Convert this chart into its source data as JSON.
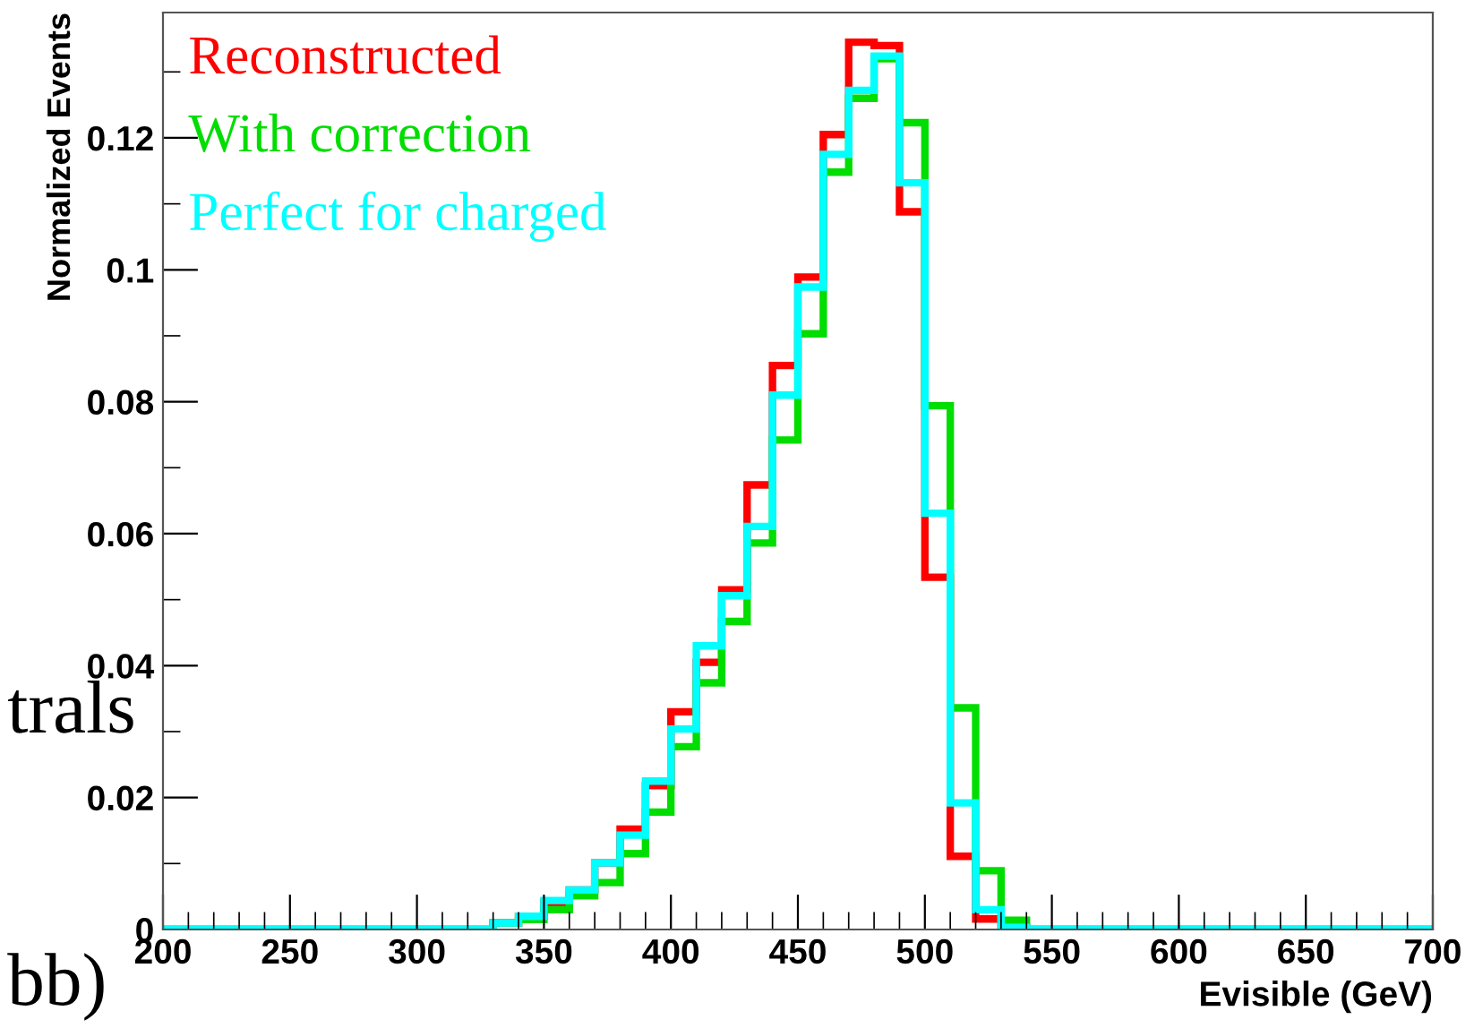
{
  "chart_data": {
    "type": "histogram",
    "xlabel": "Evisible (GeV)",
    "ylabel": "Normalized Events",
    "bins": [
      200,
      210,
      220,
      230,
      240,
      250,
      260,
      270,
      280,
      290,
      300,
      310,
      320,
      330,
      340,
      350,
      360,
      370,
      380,
      390,
      400,
      410,
      420,
      430,
      440,
      450,
      460,
      470,
      480,
      490,
      500,
      510,
      520,
      530,
      540,
      550,
      560,
      570,
      580,
      590,
      600,
      610,
      620,
      630,
      640,
      650,
      660,
      670,
      680,
      690,
      700
    ],
    "series": [
      {
        "name": "Reconstructed",
        "color": "#ff0000",
        "values": [
          0,
          0,
          0,
          0,
          0,
          0,
          0,
          0,
          0,
          0,
          0,
          0,
          0,
          0.001,
          0.002,
          0.0041,
          0.006,
          0.0101,
          0.0152,
          0.0218,
          0.033,
          0.0405,
          0.0515,
          0.0674,
          0.0855,
          0.0989,
          0.1205,
          0.1345,
          0.134,
          0.1088,
          0.0534,
          0.0111,
          0.0016,
          0.0003,
          0,
          0,
          0,
          0,
          0,
          0,
          0,
          0,
          0,
          0,
          0,
          0,
          0,
          0,
          0,
          0
        ]
      },
      {
        "name": "With correction",
        "color": "#00dd00",
        "values": [
          0,
          0,
          0,
          0,
          0,
          0,
          0,
          0,
          0,
          0,
          0,
          0,
          0,
          0.001,
          0.0015,
          0.003,
          0.0051,
          0.0071,
          0.0115,
          0.0178,
          0.0277,
          0.0374,
          0.0467,
          0.0586,
          0.0742,
          0.0903,
          0.1148,
          0.126,
          0.132,
          0.1223,
          0.0794,
          0.0336,
          0.0089,
          0.0014,
          0,
          0,
          0,
          0,
          0,
          0,
          0,
          0,
          0,
          0,
          0,
          0,
          0,
          0,
          0,
          0
        ]
      },
      {
        "name": "Perfect for charged",
        "color": "#00ffff",
        "values": [
          0,
          0,
          0,
          0,
          0,
          0,
          0,
          0,
          0,
          0,
          0,
          0,
          0,
          0.001,
          0.002,
          0.0044,
          0.006,
          0.0101,
          0.0143,
          0.0225,
          0.0304,
          0.043,
          0.0506,
          0.0611,
          0.081,
          0.0974,
          0.1175,
          0.1272,
          0.1324,
          0.1132,
          0.0631,
          0.0192,
          0.003,
          0.0003,
          0,
          0,
          0,
          0,
          0,
          0,
          0,
          0,
          0,
          0,
          0,
          0,
          0,
          0,
          0,
          0
        ]
      }
    ],
    "xlim": [
      200,
      700
    ],
    "xticks": [
      200,
      250,
      300,
      350,
      400,
      450,
      500,
      550,
      600,
      650,
      700
    ],
    "ylim": [
      0,
      0.139
    ],
    "yticks": [
      0,
      0.02,
      0.04,
      0.06,
      0.08,
      0.1,
      0.12
    ],
    "legend": "top left",
    "annotations": [
      "trals",
      "bb)"
    ]
  }
}
